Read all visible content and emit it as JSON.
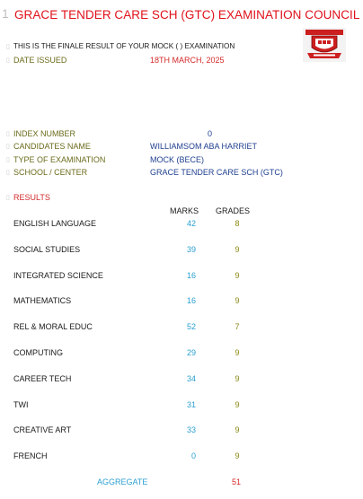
{
  "header": {
    "row_number": "1",
    "title": "GRACE TENDER CARE SCH (GTC) EXAMINATION COUNCIL"
  },
  "intro": {
    "statement": "THIS IS THE FINALE RESULT OF YOUR MOCK ( ) EXAMINATION",
    "date_label": "DATE ISSUED",
    "date_value": "18TH MARCH, 2025"
  },
  "candidate": {
    "index_label": "INDEX NUMBER",
    "index_value": "0",
    "name_label": "CANDIDATES NAME",
    "name_value": "WILLIAMSOM ABA HARRIET",
    "exam_type_label": "TYPE OF EXAMINATION",
    "exam_type_value": "MOCK (BECE)",
    "school_label": "SCHOOL / CENTER",
    "school_value": "GRACE TENDER CARE SCH (GTC)"
  },
  "results": {
    "heading": "RESULTS",
    "marks_header": "MARKS",
    "grades_header": "GRADES",
    "subjects": [
      {
        "name": "ENGLISH LANGUAGE",
        "marks": "42",
        "grade": "8"
      },
      {
        "name": "SOCIAL STUDIES",
        "marks": "39",
        "grade": "9"
      },
      {
        "name": "INTEGRATED SCIENCE",
        "marks": "16",
        "grade": "9"
      },
      {
        "name": "MATHEMATICS",
        "marks": "16",
        "grade": "9"
      },
      {
        "name": "REL & MORAL EDUC",
        "marks": "52",
        "grade": "7"
      },
      {
        "name": "COMPUTING",
        "marks": "29",
        "grade": "9"
      },
      {
        "name": "CAREER TECH",
        "marks": "34",
        "grade": "9"
      },
      {
        "name": "TWI",
        "marks": "31",
        "grade": "9"
      },
      {
        "name": "CREATIVE ART",
        "marks": "33",
        "grade": "9"
      },
      {
        "name": "FRENCH",
        "marks": "0",
        "grade": "9"
      }
    ],
    "aggregate_label": "AGGREGATE",
    "aggregate_value": "51"
  },
  "colors": {
    "title": "#e0111b",
    "olive_label": "#6b6b1c",
    "date_value": "#d42a2a",
    "blue_value": "#1f3f8f",
    "marks": "#2b9fd0",
    "grades": "#8c8a16"
  },
  "icons": {
    "logo": "school-crest-logo"
  }
}
